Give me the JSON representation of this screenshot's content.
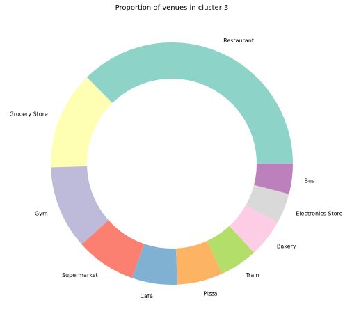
{
  "chart_data": {
    "type": "pie",
    "donut": true,
    "title": "Proportion of venues in cluster 3",
    "start_angle_deg": 0,
    "direction": "counterclockwise",
    "categories": [
      "Restaurant",
      "Grocery Store",
      "Gym",
      "Supermarket",
      "Café",
      "Pizza",
      "Train",
      "Bakery",
      "Electronics Store",
      "Bus"
    ],
    "values": [
      37,
      13,
      11,
      8,
      6,
      6,
      5,
      5,
      4,
      4
    ],
    "colors": [
      "#8dd3c7",
      "#ffffb3",
      "#bebada",
      "#fb8072",
      "#80b1d3",
      "#fdb462",
      "#b3de69",
      "#fccde5",
      "#d9d9d9",
      "#bc80bd"
    ],
    "legend": "none",
    "grid": false
  }
}
